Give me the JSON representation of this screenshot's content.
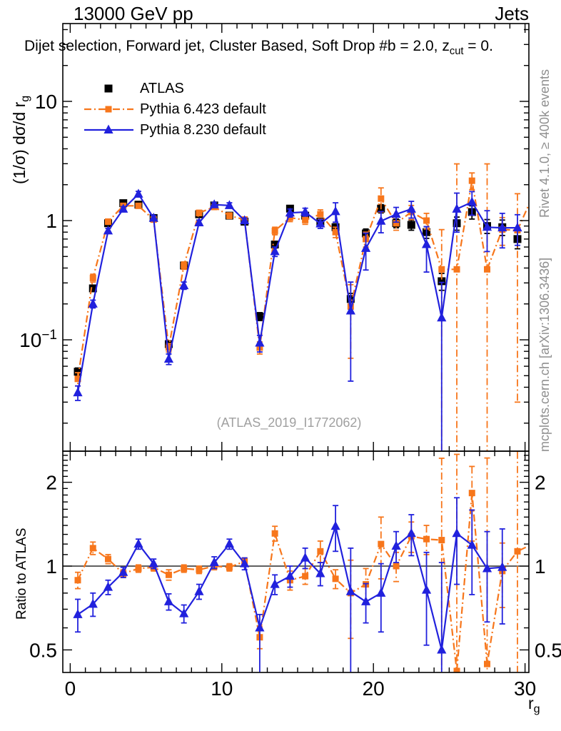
{
  "header": {
    "left": "13000 GeV pp",
    "right": "Jets"
  },
  "plot_title": {
    "main": "Dijet selection, Forward jet, Cluster Based, Soft Drop #b = 2.0, z",
    "sub": "cut",
    "tail": " = 0."
  },
  "watermark": "(ATLAS_2019_I1772062)",
  "side_notes": {
    "top_right": "Rivet 4.1.0, ≥ 400k events",
    "bottom_right": "mcplots.cern.ch [arXiv:1306.3436]"
  },
  "axis_titles": {
    "y_top_main": "(1/σ) dσ/d r",
    "y_top_sub": "g",
    "y_bottom": "Ratio to ATLAS",
    "x_main": "r",
    "x_sub": "g"
  },
  "legend": [
    {
      "label": "ATLAS",
      "series": "atlas"
    },
    {
      "label": "Pythia 6.423 default",
      "series": "pythia6"
    },
    {
      "label": "Pythia 8.230 default",
      "series": "pythia8"
    }
  ],
  "colors": {
    "atlas": "#000000",
    "pythia6": "#f7761b",
    "pythia8": "#2121dd",
    "ref_line": "#000000",
    "frame": "#000000"
  },
  "chart_data": {
    "type": "scatter",
    "xlabel": "r_g",
    "x_ticks": [
      {
        "v": 0,
        "label": "0"
      },
      {
        "v": 10,
        "label": "10"
      },
      {
        "v": 20,
        "label": "20"
      },
      {
        "v": 30,
        "label": "30"
      }
    ],
    "x": [
      0.5,
      1.5,
      2.5,
      3.5,
      4.5,
      5.5,
      6.5,
      7.5,
      8.5,
      9.5,
      10.5,
      11.5,
      12.5,
      13.5,
      14.5,
      15.5,
      16.5,
      17.5,
      18.5,
      19.5,
      20.5,
      21.5,
      22.5,
      23.5,
      24.5,
      25.5,
      26.5,
      27.5,
      28.5,
      29.5,
      30.5
    ],
    "panels": [
      {
        "name": "spectrum",
        "ylabel": "(1/σ) dσ/d r_g",
        "yscale": "log",
        "ylim": [
          0.0117,
          45
        ],
        "yticks": [
          {
            "v": 10,
            "base": "10",
            "exp": ""
          },
          {
            "v": 1,
            "base": "1",
            "exp": ""
          },
          {
            "v": 0.1,
            "base": "10",
            "exp": "−1"
          }
        ],
        "series": [
          {
            "key": "atlas",
            "name": "ATLAS",
            "marker": "square",
            "line": "none",
            "y": [
              0.054,
              0.27,
              0.95,
              1.4,
              1.36,
              1.05,
              0.092,
              0.42,
              1.13,
              1.34,
              1.1,
              0.98,
              0.157,
              0.63,
              1.26,
              1.1,
              0.98,
              0.88,
              0.22,
              0.78,
              1.26,
              0.95,
              0.92,
              0.8,
              0.31,
              0.95,
              1.18,
              0.9,
              0.88,
              0.7,
              null
            ],
            "err": [
              0.004,
              0.015,
              0.04,
              0.05,
              0.05,
              0.04,
              0.005,
              0.02,
              0.04,
              0.05,
              0.04,
              0.04,
              0.012,
              0.04,
              0.06,
              0.06,
              0.06,
              0.06,
              0.025,
              0.07,
              0.1,
              0.08,
              0.09,
              0.09,
              0.05,
              0.12,
              0.15,
              0.12,
              0.13,
              0.12,
              null
            ]
          },
          {
            "key": "pythia6",
            "name": "Pythia 6.423 default",
            "marker": "square",
            "line": "dashdot",
            "y": [
              0.047,
              0.33,
              0.98,
              1.33,
              1.33,
              1.02,
              0.086,
              0.42,
              1.16,
              1.3,
              1.1,
              1.02,
              0.086,
              0.82,
              1.06,
              1.01,
              1.13,
              0.8,
              0.19,
              0.7,
              1.53,
              0.95,
              1.18,
              1.0,
              0.39,
              0.39,
              2.16,
              0.39,
              0.84,
              0.83,
              1.6
            ],
            "err": [
              0.006,
              0.025,
              0.05,
              0.06,
              0.06,
              0.05,
              0.007,
              0.03,
              0.06,
              0.06,
              0.06,
              0.05,
              0.01,
              0.06,
              0.08,
              0.08,
              0.1,
              0.08,
              [
                0.12,
                0.1
              ],
              0.1,
              0.35,
              0.12,
              0.16,
              0.15,
              [
                0.45,
                0.45
              ],
              [
                0.38,
                2.6
              ],
              0.35,
              [
                0.38,
                2.6
              ],
              0.22,
              [
                0.8,
                0.85
              ],
              [
                1.5,
                0.3
              ]
            ]
          },
          {
            "key": "pythia8",
            "name": "Pythia 8.230 default",
            "marker": "triangle",
            "line": "solid",
            "y": [
              0.036,
              0.2,
              0.82,
              1.25,
              1.67,
              1.05,
              0.069,
              0.285,
              0.96,
              1.36,
              1.34,
              1.0,
              0.094,
              0.55,
              1.16,
              1.18,
              0.94,
              1.19,
              0.175,
              0.585,
              0.99,
              1.13,
              1.25,
              0.63,
              0.153,
              1.25,
              1.43,
              0.88,
              0.87,
              0.87,
              null
            ],
            "err": [
              0.005,
              0.015,
              0.04,
              0.06,
              0.09,
              0.05,
              0.007,
              0.02,
              0.05,
              0.06,
              0.07,
              0.05,
              0.015,
              0.05,
              0.09,
              0.09,
              0.08,
              0.22,
              0.13,
              0.2,
              0.2,
              0.16,
              0.2,
              0.26,
              [
                0.15,
                0.15
              ],
              0.45,
              0.32,
              0.33,
              0.28,
              0.25,
              null
            ]
          }
        ]
      },
      {
        "name": "ratio",
        "ylabel": "Ratio to ATLAS",
        "yscale": "log",
        "ylim": [
          0.415,
          2.59
        ],
        "ref_line": 1,
        "yticks": [
          {
            "v": 2,
            "label": "2"
          },
          {
            "v": 1,
            "label": "1"
          },
          {
            "v": 0.5,
            "label": "0.5"
          }
        ],
        "series": [
          {
            "key": "pythia6",
            "name": "Pythia 6.423 default",
            "marker": "square",
            "line": "dashdot",
            "y": [
              0.89,
              1.16,
              1.06,
              0.94,
              0.98,
              0.99,
              0.93,
              0.98,
              0.97,
              1.0,
              0.99,
              1.04,
              0.555,
              1.31,
              0.89,
              0.92,
              1.13,
              0.9,
              0.8,
              0.86,
              1.2,
              1.0,
              1.28,
              1.25,
              1.24,
              0.42,
              1.83,
              0.445,
              0.96,
              1.13,
              1.2
            ],
            "err": [
              0.06,
              0.06,
              0.04,
              0.03,
              0.03,
              0.03,
              0.04,
              0.03,
              0.03,
              0.03,
              0.03,
              0.03,
              0.05,
              0.08,
              0.07,
              0.06,
              0.1,
              0.07,
              0.25,
              0.12,
              0.3,
              0.12,
              0.16,
              0.15,
              [
                1.0,
                1.2
              ],
              [
                0.1,
                2.1
              ],
              [
                0.6,
                0.45
              ],
              [
                0.1,
                2.0
              ],
              0.25,
              [
                0.8,
                1.6
              ],
              [
                1.0,
                1.3
              ]
            ]
          },
          {
            "key": "pythia8",
            "name": "Pythia 8.230 default",
            "marker": "triangle",
            "line": "solid",
            "y": [
              0.67,
              0.73,
              0.84,
              0.95,
              1.2,
              1.02,
              0.745,
              0.675,
              0.81,
              1.03,
              1.2,
              1.02,
              0.6,
              0.86,
              0.92,
              1.07,
              0.94,
              1.39,
              0.81,
              0.745,
              0.8,
              1.18,
              1.31,
              0.82,
              0.5,
              1.31,
              1.19,
              0.98,
              0.99,
              null,
              null
            ],
            "err": [
              0.09,
              0.07,
              0.05,
              0.04,
              0.05,
              0.04,
              0.05,
              0.05,
              0.05,
              0.05,
              0.05,
              0.05,
              [
                0.25,
                0.07
              ],
              0.07,
              0.08,
              0.09,
              0.09,
              0.26,
              [
                0.45,
                0.35
              ],
              0.12,
              0.22,
              0.15,
              0.22,
              0.3,
              [
                0.2,
                0.53
              ],
              0.45,
              0.4,
              0.35,
              0.37,
              null,
              null
            ]
          }
        ]
      }
    ]
  }
}
